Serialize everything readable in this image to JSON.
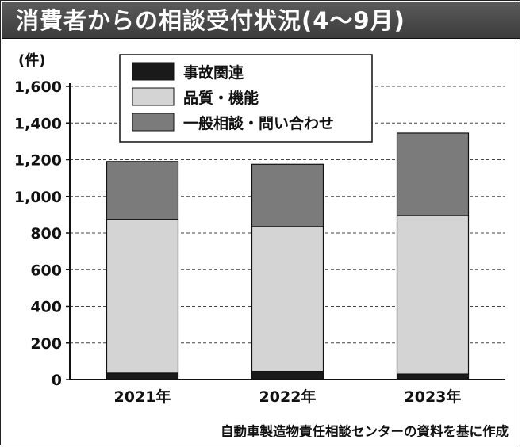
{
  "chart_data": {
    "type": "bar",
    "stacked": true,
    "title": "消費者からの相談受付状況(4～9月)",
    "unit": "(件)",
    "categories": [
      "2021年",
      "2022年",
      "2023年"
    ],
    "series": [
      {
        "name": "事故関連",
        "color": "#1a1a1a",
        "values": [
          35,
          45,
          30
        ]
      },
      {
        "name": "品質・機能",
        "color": "#d4d4d4",
        "values": [
          840,
          790,
          865
        ]
      },
      {
        "name": "一般相談・問い合わせ",
        "color": "#7b7b7b",
        "values": [
          315,
          340,
          450
        ]
      }
    ],
    "ylim": [
      0,
      1600
    ],
    "yticks": [
      0,
      200,
      400,
      600,
      800,
      1000,
      1200,
      1400,
      1600
    ],
    "ytick_labels": [
      "0",
      "200",
      "400",
      "600",
      "800",
      "1,000",
      "1,200",
      "1,400",
      "1,600"
    ],
    "grid": true,
    "grid_style": "dashed",
    "legend_position": "top-left"
  },
  "source_note": "自動車製造物責任相談センターの資料を基に作成"
}
